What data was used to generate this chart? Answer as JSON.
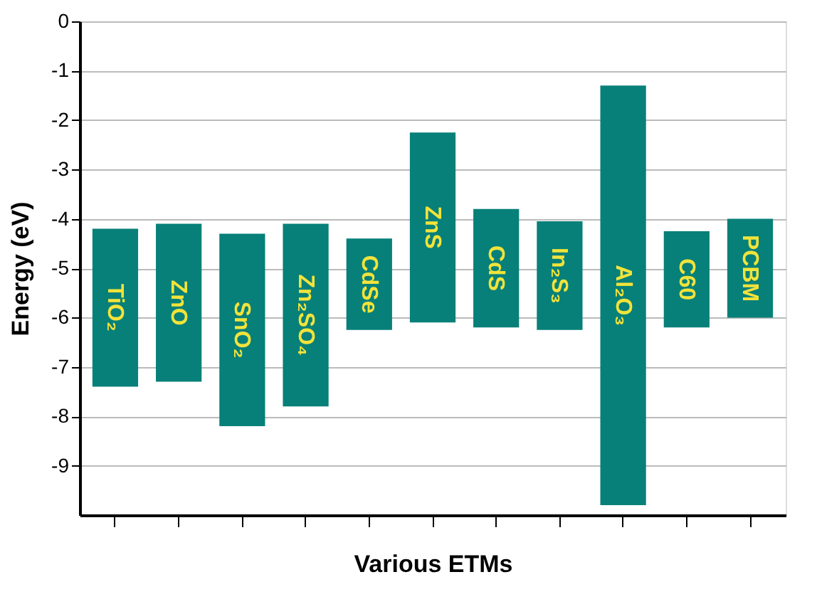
{
  "chart_data": {
    "type": "bar",
    "xlabel": "Various ETMs",
    "ylabel": "Energy (eV)",
    "categories": [
      "TiO₂",
      "ZnO",
      "SnO₂",
      "Zn₂SO₄",
      "CdSe",
      "ZnS",
      "CdS",
      "In₂S₃",
      "Al₂O₃",
      "C60",
      "PCBM"
    ],
    "base": [
      -7.4,
      -7.3,
      -8.2,
      -7.8,
      -6.25,
      -6.1,
      -6.2,
      -6.25,
      -9.8,
      -6.2,
      -6.0
    ],
    "values": [
      3.2,
      3.2,
      3.9,
      3.7,
      1.85,
      3.85,
      2.4,
      2.2,
      8.5,
      1.95,
      2.0
    ],
    "color": "#078079",
    "ylim": [
      -10,
      0
    ],
    "yticks": [
      0,
      -1,
      -2,
      -3,
      -4,
      -5,
      -6,
      -7,
      -8,
      -9
    ],
    "grid": "y"
  }
}
